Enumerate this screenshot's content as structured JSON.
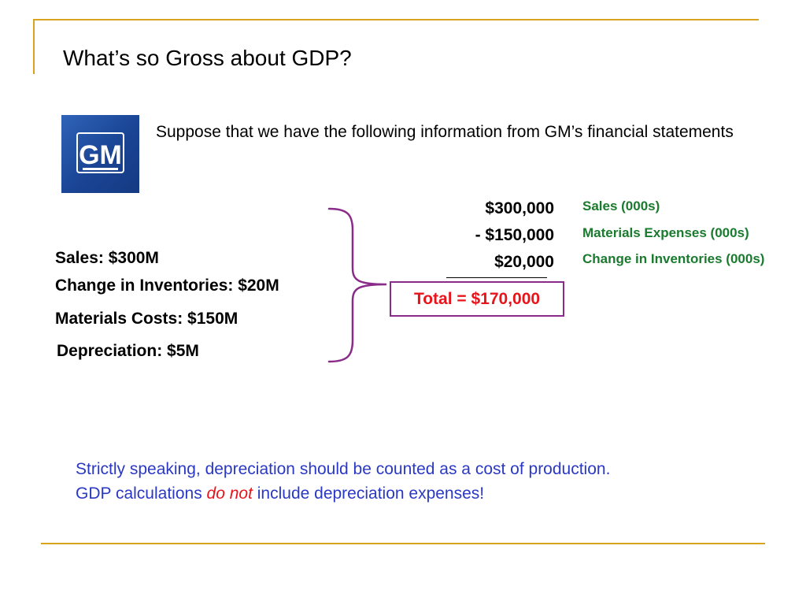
{
  "slide": {
    "title": "What’s so Gross about GDP?",
    "intro": "Suppose that we have the following information from GM’s financial statements",
    "logo_text": "GM",
    "facts": [
      "Sales:  $300M",
      "Change in Inventories: $20M",
      "Materials Costs: $150M",
      "Depreciation: $5M"
    ],
    "calculation": {
      "amounts": [
        "$300,000",
        "-  $150,000",
        "$20,000"
      ],
      "total": "Total = $170,000",
      "labels": [
        "Sales (000s)",
        "Materials Expenses (000s)",
        "Change in Inventories (000s)"
      ]
    },
    "note": {
      "line1": "Strictly speaking, depreciation should be counted as a cost of production.",
      "line2_before": "GDP calculations ",
      "line2_emphasis": "do not",
      "line2_after": " include depreciation expenses!"
    }
  },
  "colors": {
    "frame": "#d9a21f",
    "label_green": "#1a7a2e",
    "total_red": "#e8141b",
    "note_blue": "#2a38c4",
    "bracket_purple": "#8a2b8a",
    "logo_blue": "#1a4494"
  }
}
